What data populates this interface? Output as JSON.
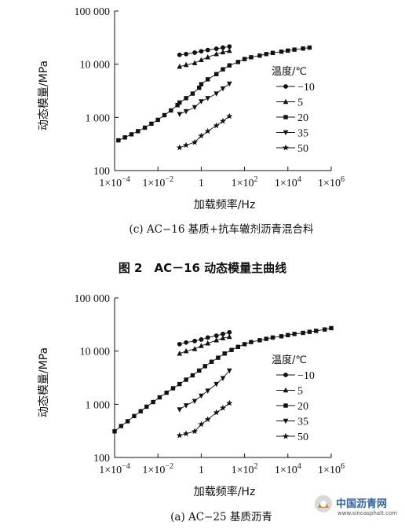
{
  "figure_title": "图 2　AC－16 动态模量主曲线",
  "watermark": {
    "text": "中国沥青网",
    "url": "www.sinoasphalt.com"
  },
  "chart_data": [
    {
      "type": "scatter",
      "panel": "c",
      "caption": "(c) AC−16 基质+抗车辙剂沥青混合料",
      "xlabel": "加载频率/Hz",
      "ylabel": "动态模量/MPa",
      "xscale": "log",
      "yscale": "log",
      "xlim": [
        0.0001,
        1000000
      ],
      "ylim": [
        100,
        100000
      ],
      "x_ticks": [
        {
          "v": 0.0001,
          "base": "1×10",
          "exp": "−4"
        },
        {
          "v": 0.01,
          "base": "1×10",
          "exp": "−2"
        },
        {
          "v": 1,
          "base": "1",
          "exp": ""
        },
        {
          "v": 100,
          "base": "1×10",
          "exp": "2"
        },
        {
          "v": 10000,
          "base": "1×10",
          "exp": "4"
        },
        {
          "v": 1000000,
          "base": "1×10",
          "exp": "6"
        }
      ],
      "y_ticks": [
        {
          "v": 100,
          "label": "100"
        },
        {
          "v": 1000,
          "label": "1 000"
        },
        {
          "v": 10000,
          "label": "10 000"
        },
        {
          "v": 100000,
          "label": "100 000"
        }
      ],
      "grid": false,
      "legend_title": "温度/℃",
      "legend_position": "right",
      "series": [
        {
          "name": "−10",
          "marker": "circle",
          "x": [
            0.1,
            0.2,
            0.5,
            1,
            2,
            5,
            10,
            20
          ],
          "y": [
            15000,
            15500,
            16500,
            17500,
            18500,
            19500,
            20500,
            21500
          ]
        },
        {
          "name": "5",
          "marker": "triangle-up",
          "x": [
            0.1,
            0.2,
            0.5,
            1,
            2,
            5,
            10,
            20
          ],
          "y": [
            9000,
            9700,
            10500,
            12000,
            13500,
            15500,
            16800,
            17800
          ]
        },
        {
          "name": "20",
          "marker": "square",
          "x": [
            0.00015,
            0.0003,
            0.0006,
            0.0012,
            0.0025,
            0.005,
            0.01,
            0.02,
            0.04,
            0.08,
            0.1,
            0.2,
            0.4,
            0.8,
            1,
            2,
            5,
            10,
            20,
            50,
            100,
            200,
            500,
            1000,
            2000,
            5000,
            10000,
            20000,
            50000,
            100000
          ],
          "y": [
            370,
            420,
            480,
            550,
            640,
            760,
            900,
            1100,
            1350,
            1700,
            1900,
            2300,
            2800,
            3600,
            4200,
            5200,
            6500,
            8000,
            9500,
            11000,
            12500,
            13500,
            14500,
            15500,
            16300,
            17200,
            18000,
            18800,
            19700,
            20500
          ]
        },
        {
          "name": "35",
          "marker": "triangle-down",
          "x": [
            0.1,
            0.2,
            0.5,
            1,
            2,
            5,
            10,
            20
          ],
          "y": [
            1150,
            1300,
            1550,
            2000,
            2300,
            2800,
            3500,
            4300
          ]
        },
        {
          "name": "50",
          "marker": "star",
          "x": [
            0.1,
            0.2,
            0.5,
            1,
            2,
            5,
            10,
            20
          ],
          "y": [
            270,
            300,
            340,
            450,
            550,
            700,
            850,
            1050
          ]
        }
      ]
    },
    {
      "type": "scatter",
      "panel": "a",
      "caption": "(a) AC−25 基质沥青",
      "xlabel": "加载频率/Hz",
      "ylabel": "动态模量/MPa",
      "xscale": "log",
      "yscale": "log",
      "xlim": [
        0.0001,
        1000000
      ],
      "ylim": [
        100,
        100000
      ],
      "x_ticks": [
        {
          "v": 0.0001,
          "base": "1×10",
          "exp": "−4"
        },
        {
          "v": 0.01,
          "base": "1×10",
          "exp": "−2"
        },
        {
          "v": 1,
          "base": "1",
          "exp": ""
        },
        {
          "v": 100,
          "base": "1×10",
          "exp": "2"
        },
        {
          "v": 10000,
          "base": "1×10",
          "exp": "4"
        },
        {
          "v": 1000000,
          "base": "1×10",
          "exp": "6"
        }
      ],
      "y_ticks": [
        {
          "v": 100,
          "label": "100"
        },
        {
          "v": 1000,
          "label": "1 000"
        },
        {
          "v": 10000,
          "label": "10 000"
        },
        {
          "v": 100000,
          "label": "100 000"
        }
      ],
      "grid": false,
      "legend_title": "温度/℃",
      "legend_position": "right",
      "series": [
        {
          "name": "−10",
          "marker": "circle",
          "x": [
            0.1,
            0.2,
            0.5,
            1,
            2,
            5,
            10,
            20
          ],
          "y": [
            13500,
            14500,
            15500,
            16500,
            18000,
            19500,
            21000,
            22500
          ]
        },
        {
          "name": "5",
          "marker": "triangle-up",
          "x": [
            0.1,
            0.2,
            0.5,
            1,
            2,
            5,
            10,
            20
          ],
          "y": [
            9000,
            10000,
            11000,
            12500,
            14000,
            16000,
            17500,
            18500
          ]
        },
        {
          "name": "20",
          "marker": "square",
          "x": [
            0.0001,
            0.0002,
            0.0004,
            0.0008,
            0.0016,
            0.003,
            0.006,
            0.012,
            0.025,
            0.05,
            0.1,
            0.2,
            0.4,
            0.8,
            1.5,
            3,
            6,
            12,
            25,
            50,
            100,
            200,
            500,
            1000,
            2000,
            5000,
            10000,
            20000,
            50000,
            100000,
            200000,
            500000,
            1000000
          ],
          "y": [
            310,
            390,
            480,
            600,
            740,
            900,
            1100,
            1350,
            1650,
            2000,
            2400,
            2900,
            3500,
            4300,
            5200,
            6300,
            7500,
            9000,
            10500,
            12000,
            13500,
            14800,
            16000,
            17000,
            18000,
            19000,
            20000,
            21000,
            22000,
            23000,
            24000,
            25500,
            27000
          ]
        },
        {
          "name": "35",
          "marker": "triangle-down",
          "x": [
            0.1,
            0.2,
            0.5,
            1,
            2,
            5,
            10,
            20
          ],
          "y": [
            800,
            950,
            1150,
            1450,
            1800,
            2400,
            3100,
            4300
          ]
        },
        {
          "name": "50",
          "marker": "star",
          "x": [
            0.1,
            0.2,
            0.5,
            1,
            2,
            5,
            10,
            20
          ],
          "y": [
            260,
            280,
            310,
            420,
            520,
            700,
            850,
            1050
          ]
        }
      ]
    }
  ]
}
